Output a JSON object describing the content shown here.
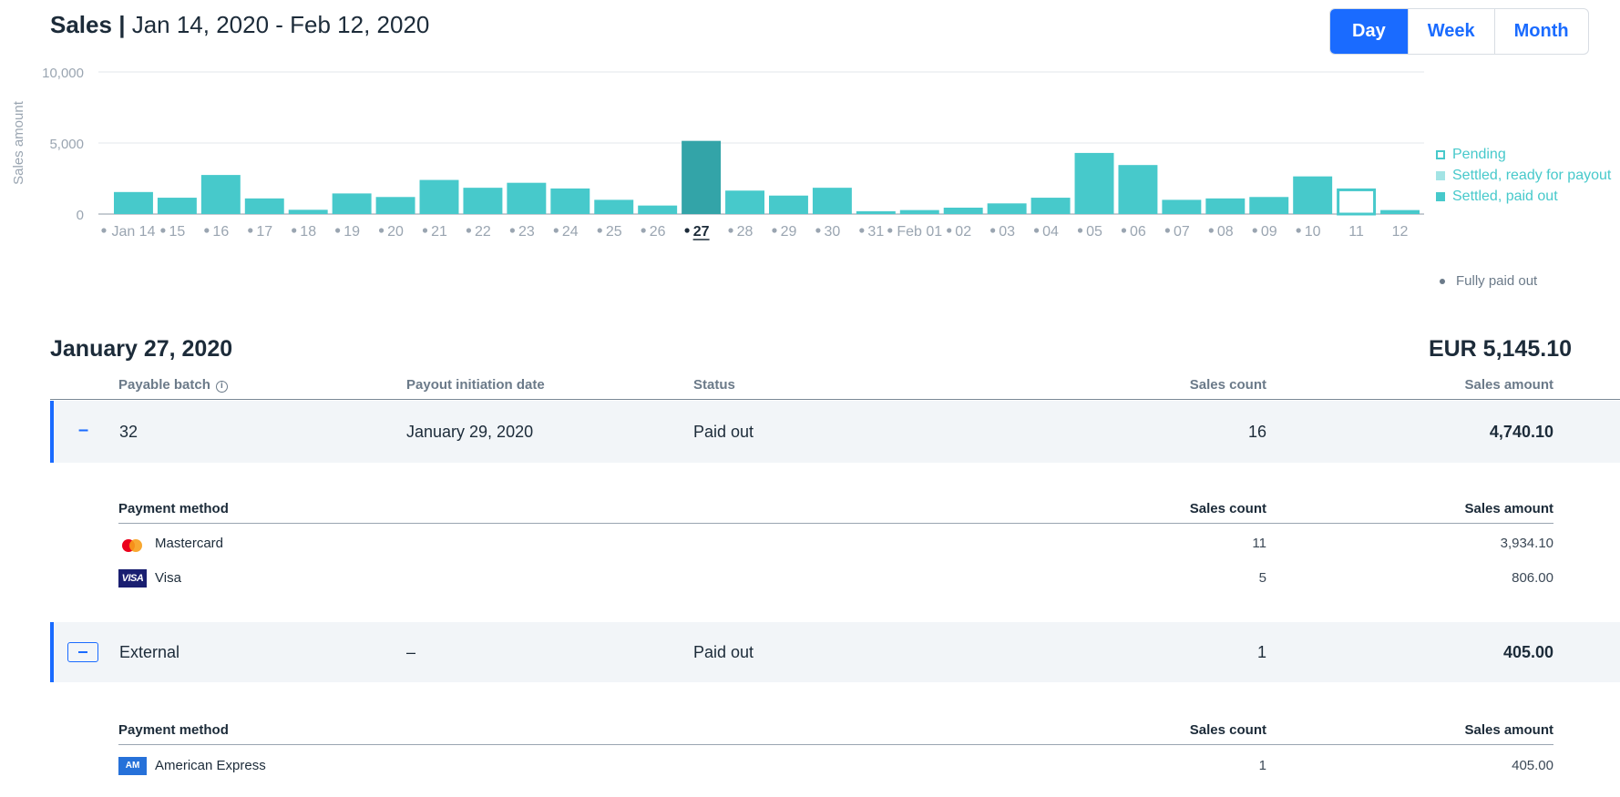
{
  "header": {
    "title_bold": "Sales",
    "separator": "|",
    "date_range": "Jan 14, 2020 - Feb 12, 2020"
  },
  "period_toggle": {
    "options": [
      "Day",
      "Week",
      "Month"
    ],
    "selected": "Day"
  },
  "chart_data": {
    "type": "bar",
    "ylabel": "Sales amount",
    "ylim": [
      0,
      10000
    ],
    "yticks": [
      "0",
      "5,000",
      "10,000"
    ],
    "categories": [
      "Jan 14",
      "15",
      "16",
      "17",
      "18",
      "19",
      "20",
      "21",
      "22",
      "23",
      "24",
      "25",
      "26",
      "27",
      "28",
      "29",
      "30",
      "31",
      "Feb 01",
      "02",
      "03",
      "04",
      "05",
      "06",
      "07",
      "08",
      "09",
      "10",
      "11",
      "12"
    ],
    "values": [
      1550,
      1150,
      2750,
      1100,
      300,
      1450,
      1200,
      2400,
      1850,
      2200,
      1800,
      1000,
      600,
      5150,
      1650,
      1300,
      1850,
      200,
      280,
      450,
      750,
      1150,
      4300,
      3450,
      1000,
      1100,
      1200,
      2650,
      1800,
      280
    ],
    "status": [
      "paid",
      "paid",
      "paid",
      "paid",
      "paid",
      "paid",
      "paid",
      "paid",
      "paid",
      "paid",
      "paid",
      "paid",
      "paid",
      "paid",
      "paid",
      "paid",
      "paid",
      "paid",
      "paid",
      "paid",
      "paid",
      "paid",
      "paid",
      "paid",
      "paid",
      "paid",
      "paid",
      "paid",
      "pending",
      "paid"
    ],
    "fully_paid_marker": [
      true,
      true,
      true,
      true,
      true,
      true,
      true,
      true,
      true,
      true,
      true,
      true,
      true,
      true,
      true,
      true,
      true,
      true,
      true,
      true,
      true,
      true,
      true,
      true,
      true,
      true,
      true,
      true,
      false,
      false
    ],
    "selected_index": 13,
    "colors": {
      "paid": "#47c9cb",
      "selected": "#33a4a8",
      "ready": "#a3e4e5",
      "pending_border": "#47c9cb"
    },
    "legend": [
      "Pending",
      "Settled, ready for payout",
      "Settled, paid out"
    ],
    "legend_position": "right",
    "grid": true
  },
  "legend_extra": {
    "fully_paid_out": "Fully paid out"
  },
  "detail": {
    "date": "January 27, 2020",
    "total": "EUR 5,145.10",
    "columns": {
      "payable_batch": "Payable batch",
      "payout_date": "Payout initiation date",
      "status": "Status",
      "sales_count": "Sales count",
      "sales_amount": "Sales amount"
    },
    "batches": [
      {
        "id": "32",
        "payout_date": "January 29, 2020",
        "status": "Paid out",
        "sales_count": "16",
        "sales_amount": "4,740.10",
        "methods_header": {
          "method": "Payment method",
          "count": "Sales count",
          "amount": "Sales amount"
        },
        "methods": [
          {
            "name": "Mastercard",
            "icon": "mastercard-icon",
            "count": "11",
            "amount": "3,934.10"
          },
          {
            "name": "Visa",
            "icon": "visa-icon",
            "icon_text": "VISA",
            "count": "5",
            "amount": "806.00"
          }
        ]
      },
      {
        "id": "External",
        "payout_date": "–",
        "status": "Paid out",
        "sales_count": "1",
        "sales_amount": "405.00",
        "methods_header": {
          "method": "Payment method",
          "count": "Sales count",
          "amount": "Sales amount"
        },
        "methods": [
          {
            "name": "American Express",
            "icon": "amex-icon",
            "icon_text": "AM EX",
            "count": "1",
            "amount": "405.00"
          }
        ]
      }
    ]
  }
}
